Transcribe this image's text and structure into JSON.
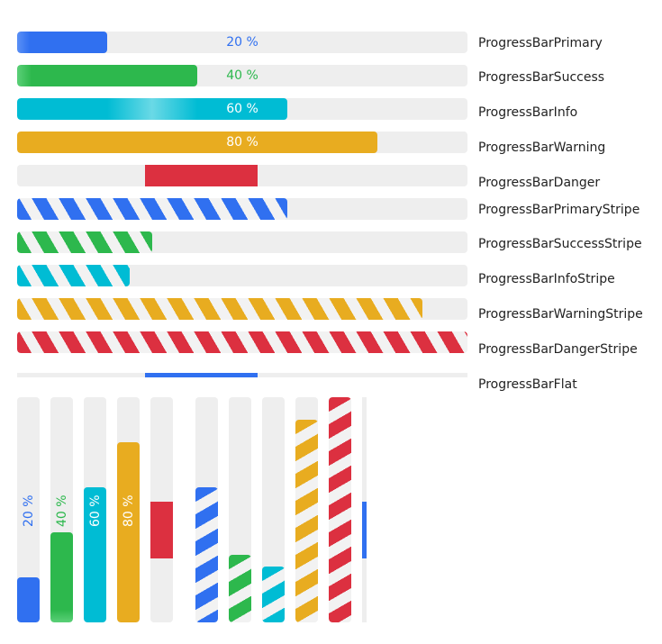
{
  "colors": {
    "primary": "#3070f0",
    "success": "#2db84d",
    "info": "#00bcd4",
    "warning": "#e8ac20",
    "danger": "#dc3040",
    "track": "#eeeeee"
  },
  "horizontal": [
    {
      "label": "ProgressBarPrimary",
      "value": 20,
      "text": "20 %"
    },
    {
      "label": "ProgressBarSuccess",
      "value": 40,
      "text": "40 %"
    },
    {
      "label": "ProgressBarInfo",
      "value": 60,
      "text": "60 %"
    },
    {
      "label": "ProgressBarWarning",
      "value": 80,
      "text": "80 %"
    },
    {
      "label": "ProgressBarDanger",
      "value": 25,
      "indeterminate": true
    },
    {
      "label": "ProgressBarPrimaryStripe",
      "value": 60
    },
    {
      "label": "ProgressBarSuccessStripe",
      "value": 30
    },
    {
      "label": "ProgressBarInfoStripe",
      "value": 25
    },
    {
      "label": "ProgressBarWarningStripe",
      "value": 90
    },
    {
      "label": "ProgressBarDangerStripe",
      "value": 100
    },
    {
      "label": "ProgressBarFlat",
      "value": 25,
      "indeterminate": true
    }
  ],
  "vertical": [
    {
      "value": 20,
      "text": "20 %"
    },
    {
      "value": 40,
      "text": "40 %"
    },
    {
      "value": 60,
      "text": "60 %"
    },
    {
      "value": 80,
      "text": "80 %"
    },
    {
      "value": 25,
      "indeterminate": true
    },
    {
      "value": 60
    },
    {
      "value": 30
    },
    {
      "value": 25
    },
    {
      "value": 90
    },
    {
      "value": 100
    },
    {
      "value": 25,
      "indeterminate": true
    }
  ]
}
